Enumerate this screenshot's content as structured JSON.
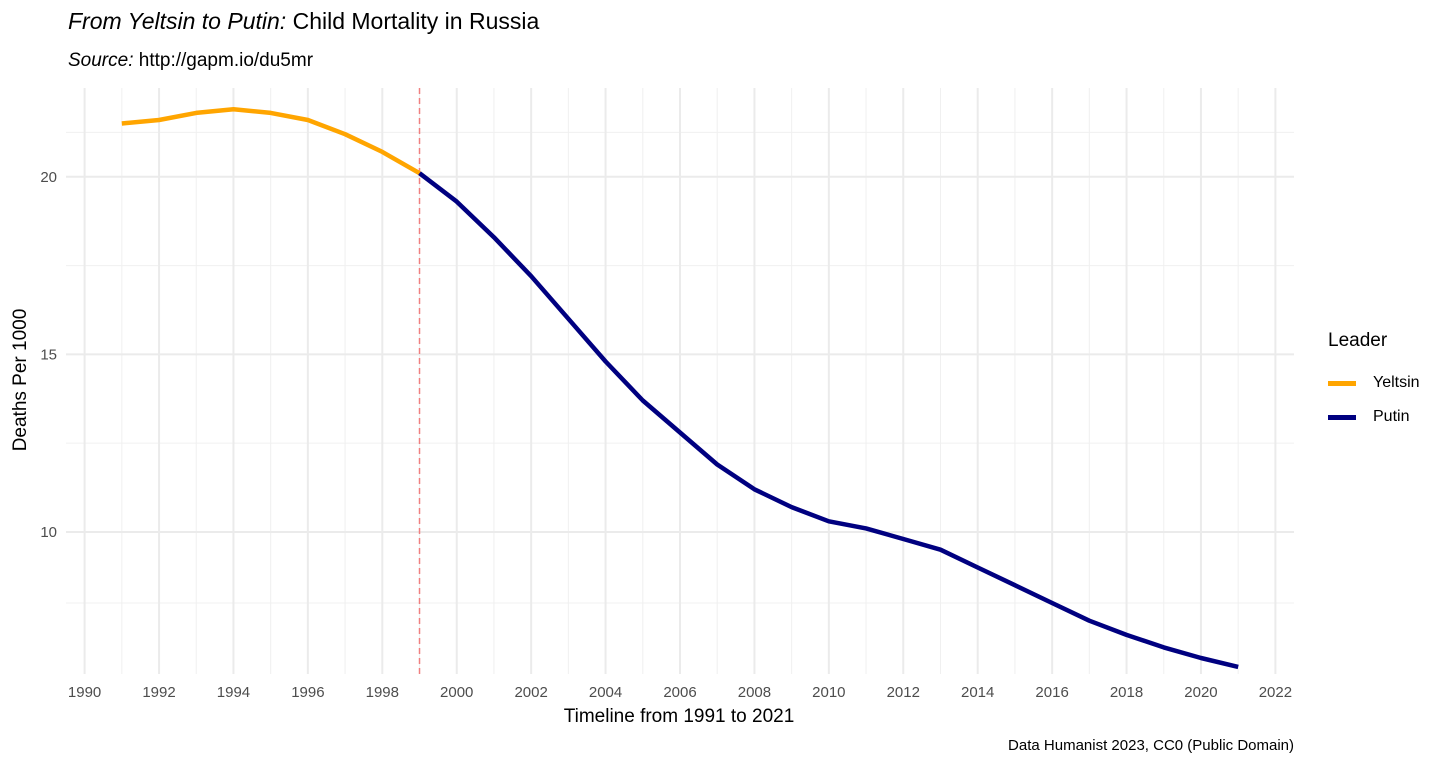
{
  "header": {
    "title_em": "From Yeltsin to Putin:",
    "title_rest": "Child Mortality in Russia",
    "subtitle_em": "Source:",
    "subtitle_rest": "http://gapm.io/du5mr"
  },
  "caption": "Data Humanist 2023, CC0 (Public Domain)",
  "legend": {
    "title": "Leader",
    "items": [
      {
        "label": "Yeltsin",
        "color": "#ffa500"
      },
      {
        "label": "Putin",
        "color": "#000080"
      }
    ]
  },
  "chart_data": {
    "type": "line",
    "title": "From Yeltsin to Putin: Child Mortality in Russia",
    "subtitle": "Source: http://gapm.io/du5mr",
    "xlabel": "Timeline from 1991 to 2021",
    "ylabel": "Deaths Per 1000",
    "xlim": [
      1989.5,
      2022.5
    ],
    "ylim": [
      6.0,
      22.5
    ],
    "x_ticks": [
      1990,
      1992,
      1994,
      1996,
      1998,
      2000,
      2002,
      2004,
      2006,
      2008,
      2010,
      2012,
      2014,
      2016,
      2018,
      2020,
      2022
    ],
    "y_ticks": [
      10,
      15,
      20
    ],
    "grid": true,
    "legend_position": "right",
    "annotations": [
      {
        "type": "vline",
        "x": 1999,
        "color": "#f08080",
        "style": "dashed"
      }
    ],
    "series": [
      {
        "name": "Yeltsin",
        "color": "#ffa500",
        "x": [
          1991,
          1992,
          1993,
          1994,
          1995,
          1996,
          1997,
          1998,
          1999
        ],
        "values": [
          21.5,
          21.6,
          21.8,
          21.9,
          21.8,
          21.6,
          21.2,
          20.7,
          20.1
        ]
      },
      {
        "name": "Putin",
        "color": "#000080",
        "x": [
          1999,
          2000,
          2001,
          2002,
          2003,
          2004,
          2005,
          2006,
          2007,
          2008,
          2009,
          2010,
          2011,
          2012,
          2013,
          2014,
          2015,
          2016,
          2017,
          2018,
          2019,
          2020,
          2021
        ],
        "values": [
          20.1,
          19.3,
          18.3,
          17.2,
          16.0,
          14.8,
          13.7,
          12.8,
          11.9,
          11.2,
          10.7,
          10.3,
          10.1,
          9.8,
          9.5,
          9.0,
          8.5,
          8.0,
          7.5,
          7.1,
          6.75,
          6.45,
          6.2
        ]
      }
    ]
  }
}
